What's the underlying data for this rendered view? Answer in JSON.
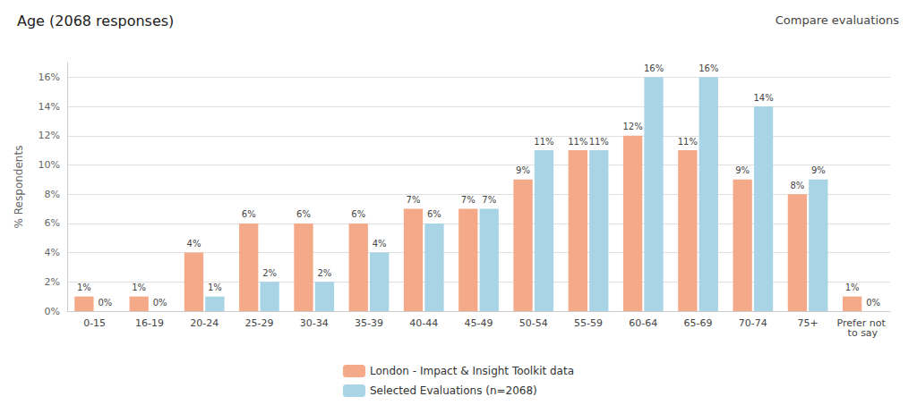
{
  "chart_data": {
    "type": "bar",
    "title": "Age (2068 responses)",
    "ylabel": "% Respondents",
    "categories": [
      "0-15",
      "16-19",
      "20-24",
      "25-29",
      "30-34",
      "35-39",
      "40-44",
      "45-49",
      "50-54",
      "55-59",
      "60-64",
      "65-69",
      "70-74",
      "75+",
      "Prefer not to say"
    ],
    "series": [
      {
        "name": "London - Impact & Insight Toolkit data",
        "color": "#F4A988",
        "values": [
          1,
          1,
          4,
          6,
          6,
          6,
          7,
          7,
          9,
          11,
          12,
          11,
          9,
          8,
          1
        ],
        "value_labels": [
          "1%",
          "1%",
          "4%",
          "6%",
          "6%",
          "6%",
          "7%",
          "7%",
          "9%",
          "11%",
          "12%",
          "11%",
          "9%",
          "8%",
          "1%"
        ]
      },
      {
        "name": "Selected Evaluations (n=2068)",
        "color": "#A8D4E6",
        "values": [
          0,
          0,
          1,
          2,
          2,
          4,
          6,
          7,
          11,
          11,
          16,
          16,
          14,
          9,
          0
        ],
        "value_labels": [
          "0%",
          "0%",
          "1%",
          "2%",
          "2%",
          "4%",
          "6%",
          "7%",
          "11%",
          "11%",
          "16%",
          "16%",
          "14%",
          "9%",
          "0%"
        ]
      }
    ],
    "ylim": [
      0,
      17
    ],
    "yticks": [
      {
        "value": 0,
        "label": "0%"
      },
      {
        "value": 2,
        "label": "2%"
      },
      {
        "value": 4,
        "label": "4%"
      },
      {
        "value": 6,
        "label": "6%"
      },
      {
        "value": 8,
        "label": "8%"
      },
      {
        "value": 10,
        "label": "10%"
      },
      {
        "value": 12,
        "label": "12%"
      },
      {
        "value": 14,
        "label": "14%"
      },
      {
        "value": 16,
        "label": "16%"
      }
    ],
    "grid": true,
    "legend": "bottom",
    "data_labels": true,
    "annotations": [
      "Compare evaluations"
    ]
  }
}
